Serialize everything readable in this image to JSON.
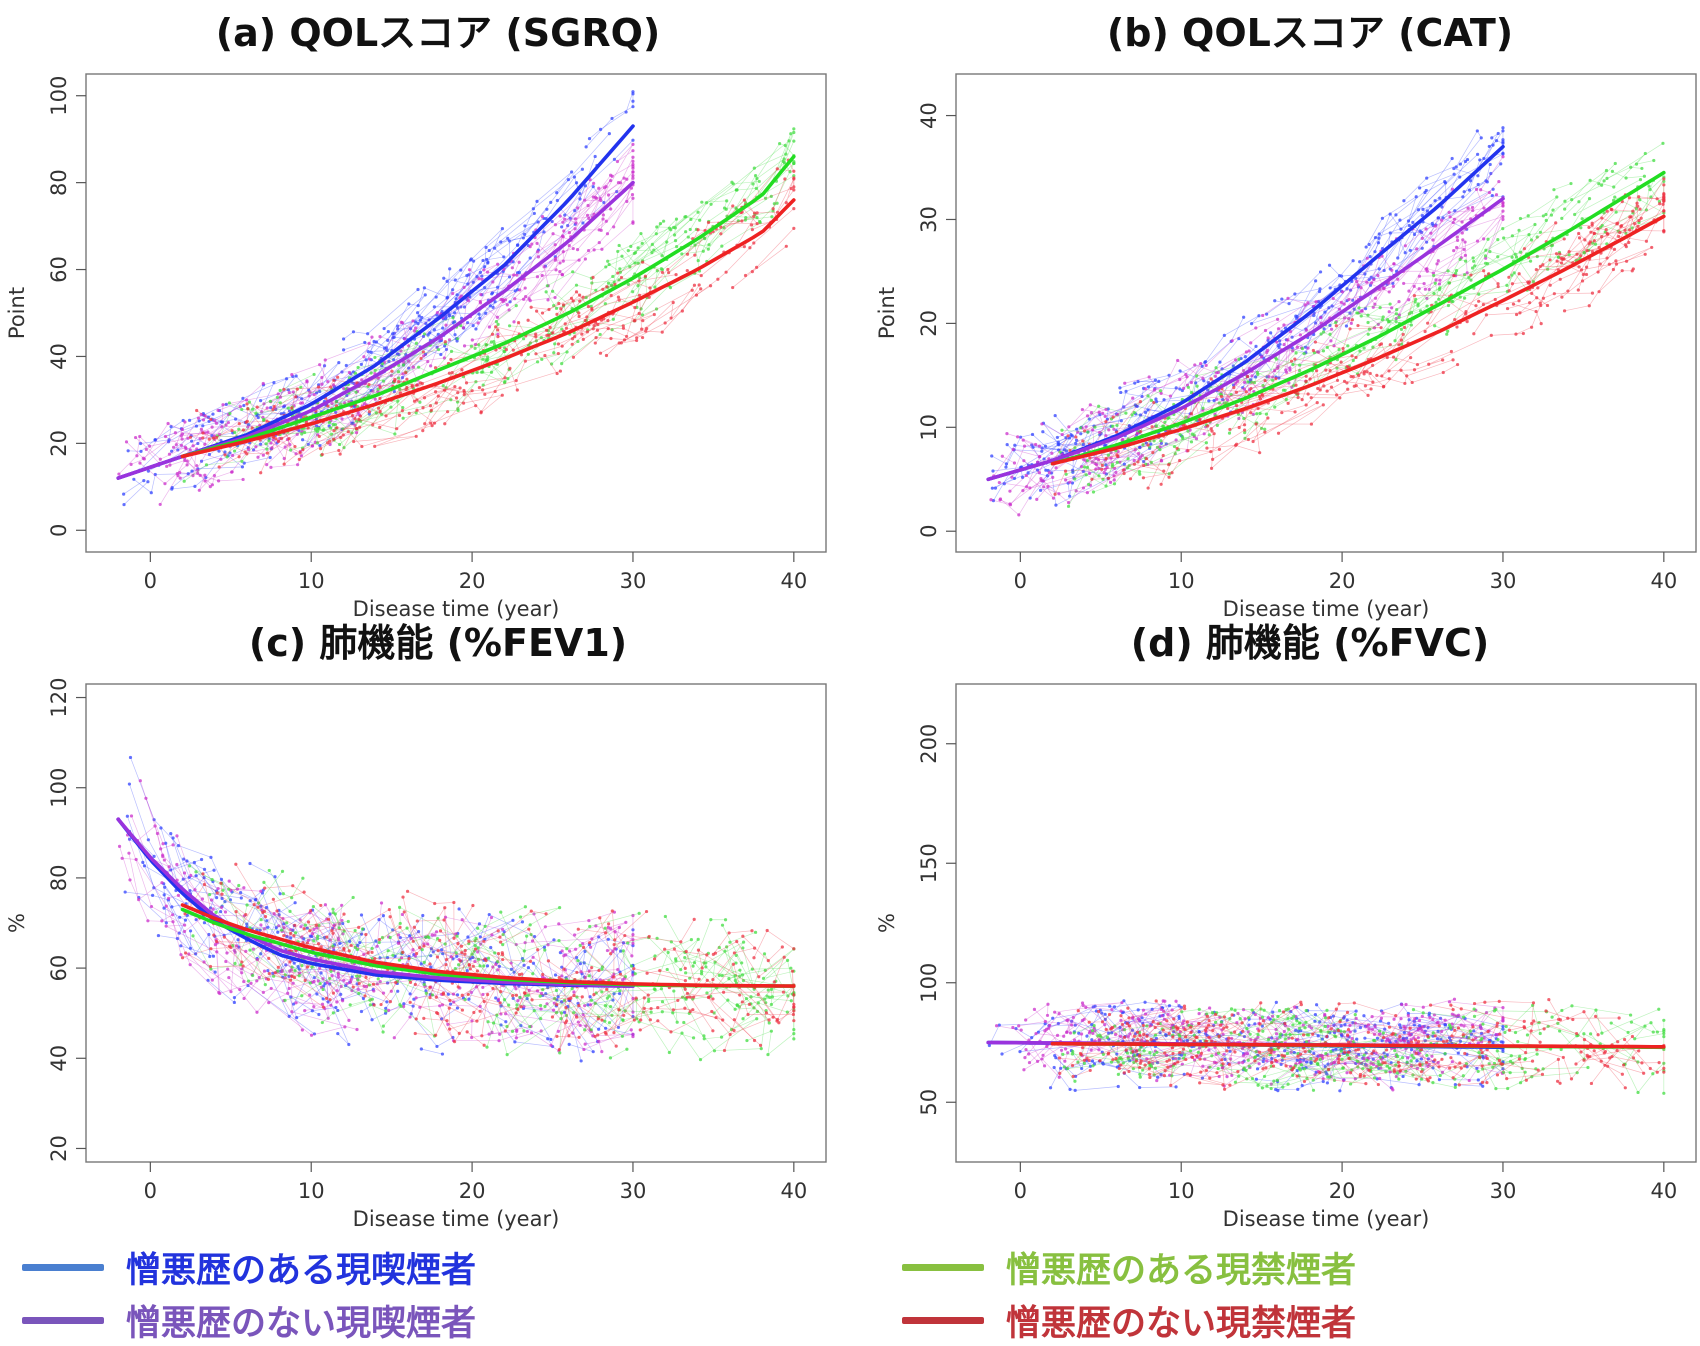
{
  "series_styles": [
    {
      "key": "blue",
      "line_color": "#2233ee",
      "point_color": "#3344ff"
    },
    {
      "key": "purple",
      "line_color": "#9a33dd",
      "point_color": "#cc33cc"
    },
    {
      "key": "green",
      "line_color": "#22dd22",
      "point_color": "#44dd44"
    },
    {
      "key": "red",
      "line_color": "#ee2222",
      "point_color": "#ee3344"
    }
  ],
  "legend": [
    {
      "label": "憎悪歴のある現喫煙者",
      "swatch_color": "#4a7fd0",
      "text_color": "#2233dd"
    },
    {
      "label": "憎悪歴のない現喫煙者",
      "swatch_color": "#7a55bb",
      "text_color": "#7a55bb"
    },
    {
      "label": "憎悪歴のある現禁煙者",
      "swatch_color": "#88c040",
      "text_color": "#88c040"
    },
    {
      "label": "憎悪歴のない現禁煙者",
      "swatch_color": "#c0343a",
      "text_color": "#c0343a"
    }
  ],
  "chart_data": [
    {
      "type": "line",
      "title": "(a) QOLスコア (SGRQ)",
      "xlabel": "Disease time (year)",
      "ylabel": "Point",
      "xlim": [
        -4,
        42
      ],
      "ylim": [
        -5,
        105
      ],
      "xticks": [
        0,
        10,
        20,
        30,
        40
      ],
      "yticks": [
        0,
        20,
        40,
        60,
        80,
        100
      ],
      "grid": false,
      "scatter": {
        "style": "individual trajectories (points joined by thin lines)",
        "x_range": [
          -2,
          40
        ],
        "spread": 9
      },
      "series": [
        {
          "x": [
            -2,
            2,
            6,
            10,
            14,
            18,
            22,
            26,
            30
          ],
          "values": [
            12,
            17,
            22,
            29,
            38,
            49,
            61,
            76,
            93
          ]
        },
        {
          "x": [
            -2,
            2,
            6,
            10,
            14,
            18,
            22,
            26,
            30
          ],
          "values": [
            12,
            17,
            21.5,
            27.5,
            35.5,
            44.5,
            55,
            66.5,
            80
          ]
        },
        {
          "x": [
            2,
            6,
            10,
            14,
            18,
            22,
            26,
            30,
            34,
            38,
            40
          ],
          "values": [
            17,
            21,
            26,
            31,
            37,
            43,
            50,
            58,
            67,
            77,
            86
          ]
        },
        {
          "x": [
            2,
            6,
            10,
            14,
            18,
            22,
            26,
            30,
            34,
            38,
            40
          ],
          "values": [
            17,
            20.5,
            24.5,
            29,
            34,
            39.5,
            45.5,
            52.5,
            60,
            68.5,
            76
          ]
        }
      ]
    },
    {
      "type": "line",
      "title": "(b) QOLスコア (CAT)",
      "xlabel": "Disease time (year)",
      "ylabel": "Point",
      "xlim": [
        -4,
        42
      ],
      "ylim": [
        -2,
        44
      ],
      "xticks": [
        0,
        10,
        20,
        30,
        40
      ],
      "yticks": [
        0,
        10,
        20,
        30,
        40
      ],
      "grid": false,
      "scatter": {
        "style": "individual trajectories (points joined by thin lines)",
        "x_range": [
          -2,
          40
        ],
        "spread": 4
      },
      "series": [
        {
          "x": [
            -2,
            2,
            6,
            10,
            14,
            18,
            22,
            26,
            30
          ],
          "values": [
            5,
            6.8,
            9.2,
            12.3,
            16.3,
            21,
            26.2,
            31.3,
            37
          ]
        },
        {
          "x": [
            -2,
            2,
            6,
            10,
            14,
            18,
            22,
            26,
            30
          ],
          "values": [
            5,
            6.8,
            9,
            11.8,
            15.2,
            19,
            23.2,
            27.5,
            32
          ]
        },
        {
          "x": [
            2,
            6,
            10,
            14,
            18,
            22,
            26,
            30,
            34,
            38,
            40
          ],
          "values": [
            6.5,
            8.3,
            10.4,
            12.8,
            15.5,
            18.5,
            21.8,
            25.2,
            28.8,
            32.6,
            34.5
          ]
        },
        {
          "x": [
            2,
            6,
            10,
            14,
            18,
            22,
            26,
            30,
            34,
            38,
            40
          ],
          "values": [
            6.5,
            8,
            9.8,
            11.8,
            14,
            16.5,
            19.2,
            22.2,
            25.3,
            28.6,
            30.3
          ]
        }
      ]
    },
    {
      "type": "line",
      "title": "(c) 肺機能 (%FEV1)",
      "xlabel": "Disease time (year)",
      "ylabel": "%",
      "xlim": [
        -4,
        42
      ],
      "ylim": [
        17,
        123
      ],
      "xticks": [
        0,
        10,
        20,
        30,
        40
      ],
      "yticks": [
        20,
        40,
        60,
        80,
        100,
        120
      ],
      "grid": false,
      "scatter": {
        "style": "individual trajectories (points joined by thin lines)",
        "x_range": [
          -2,
          40
        ],
        "spread": 14
      },
      "series": [
        {
          "x": [
            -2,
            0,
            2,
            4,
            6,
            8,
            10,
            14,
            18,
            22,
            26,
            30
          ],
          "values": [
            93,
            84,
            76.5,
            70.5,
            66.5,
            63,
            61,
            58.5,
            57.3,
            56.6,
            56.2,
            56
          ]
        },
        {
          "x": [
            -2,
            0,
            2,
            4,
            6,
            8,
            10,
            14,
            18,
            22,
            26,
            30
          ],
          "values": [
            93,
            84.5,
            77.5,
            71.5,
            67.5,
            64,
            62,
            59.2,
            57.8,
            56.9,
            56.4,
            56
          ]
        },
        {
          "x": [
            2,
            4,
            6,
            8,
            10,
            14,
            18,
            22,
            26,
            30,
            34,
            40
          ],
          "values": [
            73,
            70,
            67.5,
            65.5,
            63.5,
            60.5,
            58.6,
            57.5,
            56.8,
            56.3,
            56.1,
            56
          ]
        },
        {
          "x": [
            2,
            4,
            6,
            8,
            10,
            14,
            18,
            22,
            26,
            30,
            34,
            40
          ],
          "values": [
            74,
            71,
            68.5,
            66.5,
            64.5,
            61.3,
            59.2,
            57.9,
            57,
            56.5,
            56.2,
            56
          ]
        }
      ]
    },
    {
      "type": "line",
      "title": "(d) 肺機能 (%FVC)",
      "xlabel": "Disease time (year)",
      "ylabel": "%",
      "xlim": [
        -4,
        42
      ],
      "ylim": [
        25,
        225
      ],
      "xticks": [
        0,
        10,
        20,
        30,
        40
      ],
      "yticks": [
        50,
        100,
        150,
        200
      ],
      "grid": false,
      "scatter": {
        "style": "individual trajectories (points joined by thin lines)",
        "x_range": [
          -2,
          40
        ],
        "spread": 16
      },
      "series": [
        {
          "x": [
            -2,
            30
          ],
          "values": [
            75,
            73
          ]
        },
        {
          "x": [
            -2,
            30
          ],
          "values": [
            75,
            73.5
          ]
        },
        {
          "x": [
            2,
            40
          ],
          "values": [
            74.5,
            73
          ]
        },
        {
          "x": [
            2,
            40
          ],
          "values": [
            74.5,
            73.2
          ]
        }
      ]
    }
  ]
}
